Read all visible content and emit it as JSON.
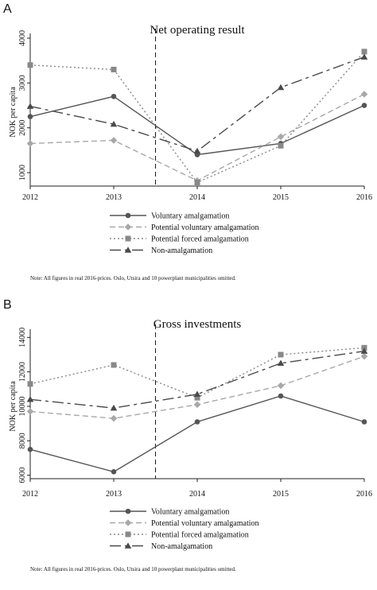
{
  "chart_data": [
    {
      "panel_label": "A",
      "type": "line",
      "title": "Net operating result",
      "ylabel": "NOK per capita",
      "x": [
        2012,
        2013,
        2014,
        2015,
        2016
      ],
      "xlim": [
        2012,
        2016
      ],
      "ylim": [
        700,
        4000
      ],
      "yticks": [
        1000,
        2000,
        3000,
        4000
      ],
      "vertical_marker_x": 2013.5,
      "legend_position": "bottom",
      "series": [
        {
          "name": "Voluntary amalgamation",
          "values": [
            2250,
            2700,
            1400,
            1650,
            2500
          ],
          "marker": "circle",
          "dash": "solid",
          "color": "#555555"
        },
        {
          "name": "Potential voluntary amalgamation",
          "values": [
            1650,
            1720,
            820,
            1800,
            2750
          ],
          "marker": "diamond",
          "dash": "dashed",
          "color": "#a8a8a8"
        },
        {
          "name": "Potential forced amalgamation",
          "values": [
            3400,
            3300,
            780,
            1600,
            3700
          ],
          "marker": "square",
          "dash": "dotted",
          "color": "#888888"
        },
        {
          "name": "Non-amalgamation",
          "values": [
            2480,
            2080,
            1480,
            2900,
            3580
          ],
          "marker": "triangle",
          "dash": "longdash",
          "color": "#4a4a4a"
        }
      ],
      "note": "Note: All figures in real 2016-prices. Oslo, Utsira and 10 powerplant municipalities omitted."
    },
    {
      "panel_label": "B",
      "type": "line",
      "title": "Gross investments",
      "ylabel": "NOK per capita",
      "x": [
        2012,
        2013,
        2014,
        2015,
        2016
      ],
      "xlim": [
        2012,
        2016
      ],
      "ylim": [
        5800,
        14200
      ],
      "yticks": [
        6000,
        8000,
        10000,
        12000,
        14000
      ],
      "vertical_marker_x": 2013.5,
      "legend_position": "bottom",
      "series": [
        {
          "name": "Voluntary amalgamation",
          "values": [
            7500,
            6200,
            9100,
            10600,
            9100
          ],
          "marker": "circle",
          "dash": "solid",
          "color": "#555555"
        },
        {
          "name": "Potential voluntary amalgamation",
          "values": [
            9700,
            9300,
            10100,
            11200,
            12900
          ],
          "marker": "diamond",
          "dash": "dashed",
          "color": "#a8a8a8"
        },
        {
          "name": "Potential forced amalgamation",
          "values": [
            11300,
            12400,
            10500,
            13000,
            13400
          ],
          "marker": "square",
          "dash": "dotted",
          "color": "#888888"
        },
        {
          "name": "Non-amalgamation",
          "values": [
            10400,
            9900,
            10700,
            12500,
            13200
          ],
          "marker": "triangle",
          "dash": "longdash",
          "color": "#4a4a4a"
        }
      ],
      "note": "Note: All figures in real 2016-prices. Oslo, Utsira and 10 powerplant municipalities omitted."
    }
  ]
}
